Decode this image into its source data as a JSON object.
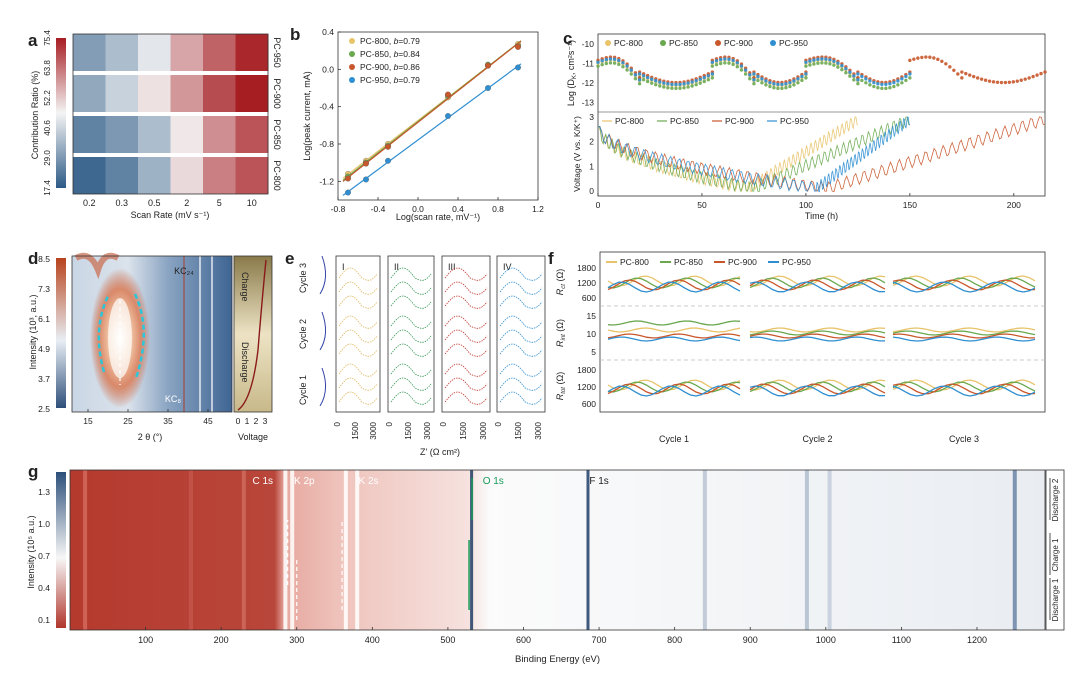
{
  "chart_data": [
    {
      "panel": "a",
      "type": "heatmap",
      "colorbar_label": "Contribution Ratio (%)",
      "colorbar_ticks": [
        "17.4",
        "29.0",
        "40.6",
        "52.2",
        "63.8",
        "75.4"
      ],
      "colorbar_range": [
        17.4,
        75.4
      ],
      "xlabel": "Scan Rate (mV s⁻¹)",
      "categories": [
        "0.2",
        "0.3",
        "0.5",
        "2",
        "5",
        "10"
      ],
      "rows": [
        "PC-950",
        "PC-900",
        "PC-850",
        "PC-800"
      ],
      "values": [
        [
          30,
          36,
          44,
          57,
          66,
          74
        ],
        [
          32,
          40,
          49,
          59,
          69,
          75.4
        ],
        [
          25,
          29,
          36,
          48,
          60,
          68
        ],
        [
          20,
          25,
          34,
          50,
          62,
          68
        ]
      ],
      "colors": {
        "low": "#2c5a86",
        "mid": "#f4f4f4",
        "high": "#a61d22"
      }
    },
    {
      "panel": "b",
      "type": "scatter",
      "xlabel": "Log(scan rate, mV⁻¹)",
      "ylabel": "Log(peak current, mA)",
      "xlim": [
        -0.8,
        1.2
      ],
      "ylim": [
        -1.4,
        0.4
      ],
      "xticks": [
        "-0.8",
        "-0.4",
        "0.0",
        "0.4",
        "0.8",
        "1.2"
      ],
      "yticks": [
        "0.4",
        "0.0",
        "-0.4",
        "-0.8",
        "-1.2"
      ],
      "x": [
        -0.7,
        -0.52,
        -0.3,
        0.3,
        0.7,
        1.0
      ],
      "series": [
        {
          "name": "PC-800",
          "b_label": "b",
          "b_value": "=0.79",
          "color": "#e8c36a",
          "values": [
            -1.12,
            -0.98,
            -0.8,
            -0.3,
            0.04,
            0.27
          ]
        },
        {
          "name": "PC-850",
          "b_label": "b",
          "b_value": "=0.84",
          "color": "#6aa84f",
          "values": [
            -1.15,
            -1.0,
            -0.82,
            -0.28,
            0.05,
            0.25
          ]
        },
        {
          "name": "PC-900",
          "b_label": "b",
          "b_value": "=0.86",
          "color": "#c8572b",
          "values": [
            -1.17,
            -1.01,
            -0.83,
            -0.27,
            0.04,
            0.24
          ]
        },
        {
          "name": "PC-950",
          "b_label": "b",
          "b_value": "=0.79",
          "color": "#2e8ed0",
          "values": [
            -1.32,
            -1.18,
            -0.98,
            -0.5,
            -0.2,
            0.02
          ]
        }
      ]
    },
    {
      "panel": "c",
      "type": "scatter",
      "xlabel": "Time (h)",
      "top_ylabel": "Log (D",
      "top_ylabel_sub": "K",
      "top_ylabel_unit": ", cm²s⁻¹)",
      "top_ylim": [
        -13.5,
        -9.5
      ],
      "top_yticks": [
        "-10",
        "-11",
        "-12",
        "-13"
      ],
      "bottom_ylabel": "Voltage (V vs. K/K⁺)",
      "bottom_ylim": [
        -0.2,
        3.2
      ],
      "bottom_yticks": [
        "3",
        "2",
        "1",
        "0"
      ],
      "xlim": [
        0,
        215
      ],
      "xticks": [
        "0",
        "50",
        "100",
        "150",
        "200"
      ],
      "series": [
        {
          "name": "PC-800",
          "color": "#e8c36a",
          "end_time": 125
        },
        {
          "name": "PC-850",
          "color": "#6aa84f",
          "end_time": 150
        },
        {
          "name": "PC-900",
          "color": "#c8572b",
          "end_time": 215
        },
        {
          "name": "PC-950",
          "color": "#2e8ed0",
          "end_time": 150
        }
      ]
    },
    {
      "panel": "d",
      "type": "heatmap",
      "xlabel": "2 θ (°)",
      "ylabel": "Intensity (10³, a.u.)",
      "xticks": [
        "15",
        "25",
        "35",
        "45"
      ],
      "colorbar_ticks": [
        "8.5",
        "7.3",
        "6.1",
        "4.9",
        "3.7",
        "2.5"
      ],
      "annotations": [
        "KC₂₄",
        "KC₈"
      ],
      "side_xlabel": "Voltage",
      "side_xticks": [
        "0",
        "1",
        "2",
        "3"
      ],
      "side_labels": [
        "Charge",
        "Discharge"
      ]
    },
    {
      "panel": "e",
      "type": "line",
      "xlabel": "Z' (Ω cm²)",
      "columns": [
        "I",
        "II",
        "III",
        "IV"
      ],
      "xticks": [
        "0",
        "1500",
        "3000"
      ],
      "cycles": [
        "Cycle 1",
        "Cycle 2",
        "Cycle 3"
      ],
      "colors": [
        "#e0b860",
        "#3a9a5a",
        "#c23a2e",
        "#2e8ed0"
      ]
    },
    {
      "panel": "f",
      "type": "line",
      "legend": [
        "PC-800",
        "PC-850",
        "PC-900",
        "PC-950"
      ],
      "colors": [
        "#e8c36a",
        "#6aa84f",
        "#c8572b",
        "#2e8ed0"
      ],
      "subplots": [
        {
          "label": "R",
          "sub": "ct",
          "unit": " (Ω)",
          "yticks": [
            "1800",
            "1200",
            "600"
          ]
        },
        {
          "label": "R",
          "sub": "int",
          "unit": " (Ω)",
          "yticks": [
            "15",
            "10",
            "5"
          ]
        },
        {
          "label": "R",
          "sub": "tot",
          "unit": " (Ω)",
          "yticks": [
            "1800",
            "1200",
            "600"
          ]
        }
      ],
      "categories": [
        "Cycle 1",
        "Cycle 2",
        "Cycle 3"
      ]
    },
    {
      "panel": "g",
      "type": "heatmap",
      "xlabel": "Binding Energy (eV)",
      "ylabel": "Intensity (10⁵ a.u.)",
      "xlim": [
        0,
        1290
      ],
      "xticks": [
        "100",
        "200",
        "300",
        "400",
        "500",
        "600",
        "700",
        "800",
        "900",
        "1000",
        "1100",
        "1200"
      ],
      "colorbar_ticks": [
        "1.3",
        "1.0",
        "0.7",
        "0.4",
        "0.1"
      ],
      "peaks": [
        {
          "label": "C 1s",
          "energy": 285,
          "color": "#ffffff"
        },
        {
          "label": "K 2p",
          "energy": 294,
          "color": "#ffffff"
        },
        {
          "label": "K 2s",
          "energy": 378,
          "color": "#ffffff"
        },
        {
          "label": "O 1s",
          "energy": 532,
          "color": "#1a9a5a"
        },
        {
          "label": "F 1s",
          "energy": 686,
          "color": "#222222"
        }
      ],
      "stages": [
        "Discharge 1",
        "Charge 1",
        "Discharge 2"
      ]
    }
  ],
  "panels": {
    "a": "a",
    "b": "b",
    "c": "c",
    "d": "d",
    "e": "e",
    "f": "f",
    "g": "g"
  }
}
